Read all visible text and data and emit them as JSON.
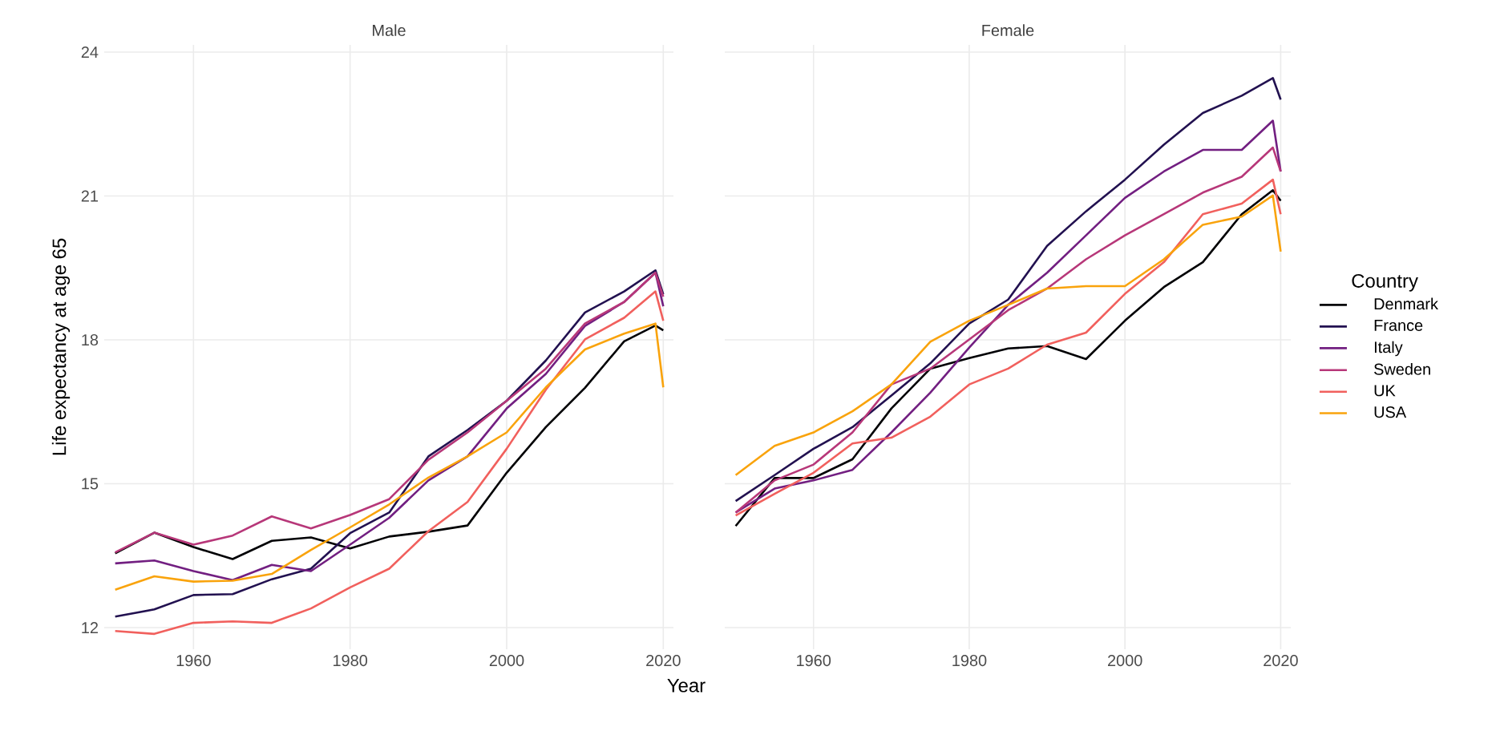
{
  "chart_data": [
    {
      "type": "line",
      "title": "Male",
      "xlabel": "Year",
      "ylabel": "Life expectancy at age 65",
      "x": [
        1950,
        1955,
        1960,
        1965,
        1970,
        1975,
        1980,
        1985,
        1990,
        1995,
        2000,
        2005,
        2010,
        2015,
        2019,
        2020
      ],
      "xlim": [
        1948.6,
        2021.3
      ],
      "ylim": [
        11.55,
        24.15
      ],
      "xticks": [
        1960,
        1980,
        2000,
        2020
      ],
      "yticks": [
        12,
        15,
        18,
        21,
        24
      ],
      "grid": true,
      "legend": false,
      "line_style": "solid",
      "marker": "none",
      "series": [
        {
          "color": "#000004",
          "values": [
            13.55,
            13.98,
            13.68,
            13.43,
            13.81,
            13.88,
            13.65,
            13.9,
            14.0,
            14.13,
            15.23,
            16.18,
            17.0,
            17.97,
            18.3,
            18.2
          ]
        },
        {
          "color": "#221150",
          "values": [
            12.23,
            12.38,
            12.68,
            12.7,
            13.01,
            13.23,
            13.97,
            14.4,
            15.57,
            16.12,
            16.73,
            17.57,
            18.57,
            19.01,
            19.45,
            18.95
          ]
        },
        {
          "color": "#721f81",
          "values": [
            13.34,
            13.4,
            13.18,
            12.99,
            13.31,
            13.18,
            13.73,
            14.29,
            15.07,
            15.57,
            16.57,
            17.29,
            18.29,
            18.79,
            19.4,
            18.7
          ]
        },
        {
          "color": "#b73779",
          "values": [
            13.57,
            13.98,
            13.73,
            13.92,
            14.32,
            14.07,
            14.35,
            14.68,
            15.5,
            16.07,
            16.73,
            17.4,
            18.34,
            18.79,
            19.4,
            18.9
          ]
        },
        {
          "color": "#f1605d",
          "values": [
            11.93,
            11.87,
            12.1,
            12.13,
            12.1,
            12.4,
            12.84,
            13.23,
            14.01,
            14.62,
            15.73,
            16.96,
            18.01,
            18.46,
            19.01,
            18.4
          ]
        },
        {
          "color": "#f9a30c",
          "values": [
            12.79,
            13.07,
            12.96,
            12.98,
            13.12,
            13.62,
            14.09,
            14.57,
            15.13,
            15.57,
            16.07,
            17.01,
            17.8,
            18.13,
            18.34,
            17.01
          ]
        }
      ]
    },
    {
      "type": "line",
      "title": "Female",
      "legend_title": "Country",
      "x": [
        1950,
        1955,
        1960,
        1965,
        1970,
        1975,
        1980,
        1985,
        1990,
        1995,
        2000,
        2005,
        2010,
        2015,
        2019,
        2020
      ],
      "xlim": [
        1948.6,
        2021.3
      ],
      "ylim": [
        11.55,
        24.15
      ],
      "xticks": [
        1960,
        1980,
        2000,
        2020
      ],
      "yticks": [
        12,
        15,
        18,
        21,
        24
      ],
      "tick_labels": "x",
      "grid": true,
      "legend": "right",
      "line_style": "solid",
      "marker": "none",
      "series": [
        {
          "name": "Denmark",
          "color": "#000004",
          "values": [
            14.12,
            15.12,
            15.12,
            15.51,
            16.57,
            17.4,
            17.62,
            17.82,
            17.87,
            17.6,
            18.4,
            19.1,
            19.62,
            20.62,
            21.12,
            20.9
          ]
        },
        {
          "name": "France",
          "color": "#221150",
          "values": [
            14.64,
            15.18,
            15.73,
            16.18,
            16.84,
            17.51,
            18.34,
            18.84,
            19.96,
            20.68,
            21.34,
            22.07,
            22.73,
            23.09,
            23.46,
            23.01
          ]
        },
        {
          "name": "Italy",
          "color": "#721f81",
          "values": [
            14.4,
            14.9,
            15.07,
            15.29,
            16.07,
            16.9,
            17.84,
            18.73,
            19.4,
            20.18,
            20.96,
            21.51,
            21.96,
            21.96,
            22.57,
            21.51
          ]
        },
        {
          "name": "Sweden",
          "color": "#b73779",
          "values": [
            14.4,
            15.07,
            15.4,
            16.07,
            17.07,
            17.4,
            18.01,
            18.62,
            19.07,
            19.68,
            20.18,
            20.62,
            21.07,
            21.4,
            22.01,
            21.51
          ]
        },
        {
          "name": "UK",
          "color": "#f1605d",
          "values": [
            14.34,
            14.79,
            15.23,
            15.84,
            15.96,
            16.4,
            17.07,
            17.4,
            17.9,
            18.15,
            18.96,
            19.62,
            20.62,
            20.84,
            21.34,
            20.62
          ]
        },
        {
          "name": "USA",
          "color": "#f9a30c",
          "values": [
            15.18,
            15.79,
            16.07,
            16.51,
            17.07,
            17.96,
            18.4,
            18.73,
            19.07,
            19.12,
            19.12,
            19.68,
            20.4,
            20.57,
            21.01,
            19.84
          ]
        }
      ]
    }
  ]
}
